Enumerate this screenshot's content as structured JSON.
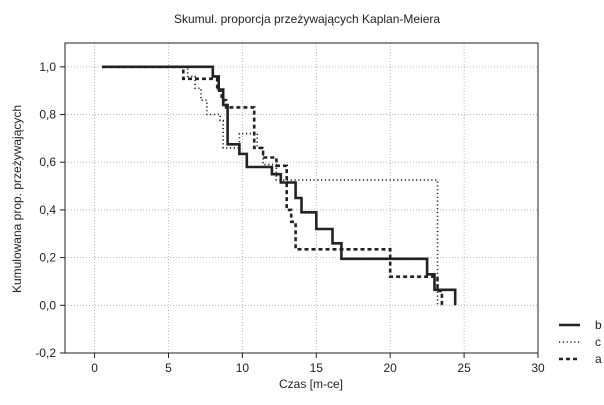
{
  "chart_data": {
    "type": "line",
    "title": "Skumul. proporcja przeżywających Kaplan-Meiera",
    "xlabel": "Czas [m-ce]",
    "ylabel": "Kumulowana prop. przeżywających",
    "xlim": [
      -2,
      30
    ],
    "ylim": [
      -0.2,
      1.1
    ],
    "x_ticks": [
      0,
      5,
      10,
      15,
      20,
      25,
      30
    ],
    "x_tick_labels": [
      "0",
      "5",
      "10",
      "15",
      "20",
      "25",
      "30"
    ],
    "y_ticks": [
      -0.2,
      0.0,
      0.2,
      0.4,
      0.6,
      0.8,
      1.0
    ],
    "y_tick_labels": [
      "-0,2",
      "0,0",
      "0,2",
      "0,4",
      "0,6",
      "0,8",
      "1,0"
    ],
    "grid": true,
    "legend_position": "right-bottom",
    "series": [
      {
        "name": "b",
        "style": "solid",
        "color": "#222222",
        "steps": [
          [
            0.5,
            1.0
          ],
          [
            8.0,
            0.96
          ],
          [
            8.4,
            0.905
          ],
          [
            8.7,
            0.84
          ],
          [
            9.0,
            0.675
          ],
          [
            9.8,
            0.635
          ],
          [
            10.3,
            0.58
          ],
          [
            12.0,
            0.55
          ],
          [
            12.6,
            0.515
          ],
          [
            13.6,
            0.45
          ],
          [
            14.0,
            0.39
          ],
          [
            15.0,
            0.32
          ],
          [
            16.1,
            0.26
          ],
          [
            16.7,
            0.195
          ],
          [
            22.5,
            0.13
          ],
          [
            23.0,
            0.065
          ],
          [
            24.0,
            0.065
          ],
          [
            24.4,
            0.0
          ]
        ]
      },
      {
        "name": "c",
        "style": "dotted",
        "color": "#222222",
        "steps": [
          [
            0.5,
            1.0
          ],
          [
            6.3,
            0.96
          ],
          [
            6.8,
            0.91
          ],
          [
            7.2,
            0.86
          ],
          [
            7.6,
            0.8
          ],
          [
            8.5,
            0.775
          ],
          [
            8.7,
            0.66
          ],
          [
            9.0,
            0.66
          ],
          [
            9.8,
            0.72
          ],
          [
            10.2,
            0.72
          ],
          [
            11.0,
            0.66
          ],
          [
            11.4,
            0.59
          ],
          [
            12.3,
            0.525
          ],
          [
            23.2,
            0.0
          ]
        ]
      },
      {
        "name": "a",
        "style": "dashed",
        "color": "#222222",
        "steps": [
          [
            0.5,
            1.0
          ],
          [
            6.0,
            0.95
          ],
          [
            7.9,
            0.95
          ],
          [
            8.3,
            0.9
          ],
          [
            8.6,
            0.86
          ],
          [
            8.9,
            0.83
          ],
          [
            10.8,
            0.66
          ],
          [
            11.4,
            0.62
          ],
          [
            12.3,
            0.585
          ],
          [
            13.0,
            0.4
          ],
          [
            13.3,
            0.35
          ],
          [
            13.6,
            0.235
          ],
          [
            16.5,
            0.235
          ],
          [
            20.0,
            0.12
          ],
          [
            22.7,
            0.12
          ],
          [
            23.2,
            0.06
          ],
          [
            23.5,
            0.0
          ]
        ]
      }
    ]
  }
}
